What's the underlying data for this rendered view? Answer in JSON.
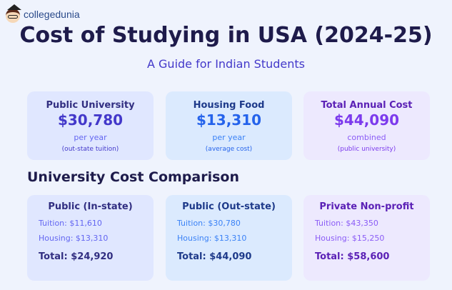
{
  "logo": {
    "text": "collegedunia"
  },
  "title": "Cost of Studying in USA (2024-25)",
  "subtitle": "A Guide for Indian Students",
  "summary": [
    {
      "title": "Public University",
      "value": "$30,780",
      "label": "per year",
      "note": "(out-state tuition)"
    },
    {
      "title": "Housing Food",
      "value": "$13,310",
      "label": "per year",
      "note": "(average cost)"
    },
    {
      "title": "Total Annual Cost",
      "value": "$44,090",
      "label": "combined",
      "note": "(public university)"
    }
  ],
  "comparison": {
    "heading": "University Cost Comparison",
    "cards": [
      {
        "title": "Public (In-state)",
        "tuition": "Tuition: $11,610",
        "housing": "Housing: $13,310",
        "total": "Total: $24,920"
      },
      {
        "title": "Public (Out-state)",
        "tuition": "Tuition: $30,780",
        "housing": "Housing: $13,310",
        "total": "Total: $44,090"
      },
      {
        "title": "Private Non-profit",
        "tuition": "Tuition: $43,350",
        "housing": "Housing: $15,250",
        "total": "Total: $58,600"
      }
    ]
  }
}
